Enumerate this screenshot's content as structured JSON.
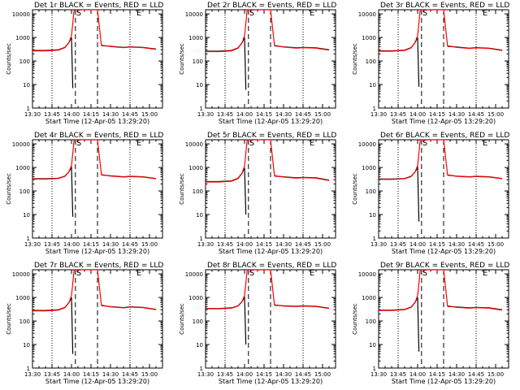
{
  "x_tick_labels": [
    "13:30",
    "13:45",
    "14:00",
    "14:15",
    "14:30",
    "14:45",
    "15:00"
  ],
  "y_tick_labels": [
    "1",
    "10",
    "100",
    "1000",
    "10000"
  ],
  "ylabel": "Counts/sec",
  "xlabel": "Start Time (12-Apr-05 13:29:20)",
  "marker_s": "S",
  "marker_e": "E",
  "colors": {
    "events": "#000000",
    "lld": "#ff0000"
  },
  "chart_data": [
    {
      "type": "line",
      "title": "Det 1r BLACK = Events, RED = LLD",
      "xlabel": "Start Time (12-Apr-05 13:29:20)",
      "ylabel": "Counts/sec",
      "y_scale": "log",
      "ylim": [
        1,
        15000
      ],
      "xlim": [
        "13:30",
        "15:10"
      ],
      "dotted_lines": [
        "13:45",
        "14:45"
      ],
      "dashed_lines": [
        "14:03",
        "14:20"
      ],
      "series": [
        {
          "name": "Events",
          "color": "#000000",
          "x": [
            "13:30",
            "13:40",
            "13:50",
            "13:55",
            "13:58",
            "14:00",
            "14:01",
            "14:02",
            "14:20",
            "14:23",
            "14:30",
            "14:40",
            "14:45",
            "14:55",
            "15:05"
          ],
          "y": [
            280,
            280,
            300,
            380,
            600,
            1000,
            7,
            null,
            null,
            450,
            420,
            380,
            400,
            380,
            320
          ]
        },
        {
          "name": "LLD",
          "color": "#ff0000",
          "x": [
            "13:30",
            "13:40",
            "13:50",
            "13:55",
            "13:58",
            "14:00",
            "14:01",
            "14:02",
            "14:20",
            "14:23",
            "14:30",
            "14:40",
            "14:45",
            "14:55",
            "15:05"
          ],
          "y": [
            270,
            270,
            290,
            370,
            600,
            1200,
            4000,
            15000,
            15000,
            470,
            410,
            370,
            390,
            370,
            310
          ]
        }
      ]
    },
    {
      "type": "line",
      "title": "Det 2r BLACK = Events, RED = LLD",
      "xlabel": "Start Time (12-Apr-05 13:29:20)",
      "ylabel": "Counts/sec",
      "y_scale": "log",
      "ylim": [
        1,
        15000
      ],
      "xlim": [
        "13:30",
        "15:10"
      ],
      "dotted_lines": [
        "13:45",
        "14:45"
      ],
      "dashed_lines": [
        "14:03",
        "14:20"
      ],
      "series": [
        {
          "name": "Events",
          "color": "#000000",
          "x": [
            "13:30",
            "13:40",
            "13:50",
            "13:55",
            "13:58",
            "14:00",
            "14:01",
            "14:02",
            "14:20",
            "14:23",
            "14:30",
            "14:40",
            "14:45",
            "14:55",
            "15:05"
          ],
          "y": [
            260,
            260,
            280,
            360,
            580,
            1000,
            6,
            null,
            null,
            440,
            400,
            360,
            380,
            360,
            300
          ]
        },
        {
          "name": "LLD",
          "color": "#ff0000",
          "x": [
            "13:30",
            "13:40",
            "13:50",
            "13:55",
            "13:58",
            "14:00",
            "14:01",
            "14:02",
            "14:20",
            "14:23",
            "14:30",
            "14:40",
            "14:45",
            "14:55",
            "15:05"
          ],
          "y": [
            250,
            250,
            270,
            350,
            580,
            1200,
            4000,
            15000,
            15000,
            460,
            390,
            350,
            370,
            350,
            290
          ]
        }
      ]
    },
    {
      "type": "line",
      "title": "Det 3r BLACK = Events, RED = LLD",
      "xlabel": "Start Time (12-Apr-05 13:29:20)",
      "ylabel": "Counts/sec",
      "y_scale": "log",
      "ylim": [
        1,
        15000
      ],
      "xlim": [
        "13:30",
        "15:10"
      ],
      "dotted_lines": [
        "13:45",
        "14:45"
      ],
      "dashed_lines": [
        "14:03",
        "14:20"
      ],
      "series": [
        {
          "name": "Events",
          "color": "#000000",
          "x": [
            "13:30",
            "13:40",
            "13:50",
            "13:55",
            "13:58",
            "14:00",
            "14:01",
            "14:02",
            "14:20",
            "14:23",
            "14:30",
            "14:40",
            "14:45",
            "14:55",
            "15:05"
          ],
          "y": [
            270,
            270,
            290,
            370,
            600,
            1000,
            8,
            null,
            null,
            420,
            390,
            350,
            370,
            350,
            290
          ]
        },
        {
          "name": "LLD",
          "color": "#ff0000",
          "x": [
            "13:30",
            "13:40",
            "13:50",
            "13:55",
            "13:58",
            "14:00",
            "14:01",
            "14:02",
            "14:20",
            "14:23",
            "14:30",
            "14:40",
            "14:45",
            "14:55",
            "15:05"
          ],
          "y": [
            260,
            260,
            280,
            360,
            600,
            1200,
            4000,
            15000,
            15000,
            440,
            380,
            340,
            360,
            340,
            280
          ]
        }
      ]
    },
    {
      "type": "line",
      "title": "Det 4r BLACK = Events, RED = LLD",
      "xlabel": "Start Time (12-Apr-05 13:29:20)",
      "ylabel": "Counts/sec",
      "y_scale": "log",
      "ylim": [
        1,
        15000
      ],
      "xlim": [
        "13:30",
        "15:10"
      ],
      "dotted_lines": [
        "13:45",
        "14:45"
      ],
      "dashed_lines": [
        "14:03",
        "14:20"
      ],
      "series": [
        {
          "name": "Events",
          "color": "#000000",
          "x": [
            "13:30",
            "13:40",
            "13:50",
            "13:55",
            "13:58",
            "14:00",
            "14:01",
            "14:02",
            "14:20",
            "14:23",
            "14:30",
            "14:40",
            "14:45",
            "14:55",
            "15:05"
          ],
          "y": [
            330,
            330,
            350,
            430,
            650,
            1000,
            8,
            null,
            null,
            480,
            440,
            400,
            420,
            400,
            340
          ]
        },
        {
          "name": "LLD",
          "color": "#ff0000",
          "x": [
            "13:30",
            "13:40",
            "13:50",
            "13:55",
            "13:58",
            "14:00",
            "14:01",
            "14:02",
            "14:20",
            "14:23",
            "14:30",
            "14:40",
            "14:45",
            "14:55",
            "15:05"
          ],
          "y": [
            320,
            320,
            340,
            420,
            650,
            1200,
            4000,
            15000,
            15000,
            500,
            430,
            390,
            410,
            390,
            330
          ]
        }
      ]
    },
    {
      "type": "line",
      "title": "Det 5r BLACK = Events, RED = LLD",
      "xlabel": "Start Time (12-Apr-05 13:29:20)",
      "ylabel": "Counts/sec",
      "y_scale": "log",
      "ylim": [
        1,
        15000
      ],
      "xlim": [
        "13:30",
        "15:10"
      ],
      "dotted_lines": [
        "13:45",
        "14:45"
      ],
      "dashed_lines": [
        "14:03",
        "14:20"
      ],
      "series": [
        {
          "name": "Events",
          "color": "#000000",
          "x": [
            "13:30",
            "13:40",
            "13:50",
            "13:55",
            "13:58",
            "14:00",
            "14:01",
            "14:02",
            "14:20",
            "14:23",
            "14:30",
            "14:40",
            "14:45",
            "14:55",
            "15:05"
          ],
          "y": [
            250,
            250,
            270,
            350,
            560,
            950,
            10,
            null,
            null,
            430,
            400,
            360,
            380,
            360,
            290
          ]
        },
        {
          "name": "LLD",
          "color": "#ff0000",
          "x": [
            "13:30",
            "13:40",
            "13:50",
            "13:55",
            "13:58",
            "14:00",
            "14:01",
            "14:02",
            "14:20",
            "14:23",
            "14:30",
            "14:40",
            "14:45",
            "14:55",
            "15:05"
          ],
          "y": [
            240,
            240,
            260,
            340,
            560,
            1150,
            4000,
            15000,
            15000,
            450,
            390,
            350,
            370,
            350,
            280
          ]
        }
      ]
    },
    {
      "type": "line",
      "title": "Det 6r BLACK = Events, RED = LLD",
      "xlabel": "Start Time (12-Apr-05 13:29:20)",
      "ylabel": "Counts/sec",
      "y_scale": "log",
      "ylim": [
        1,
        15000
      ],
      "xlim": [
        "13:30",
        "15:10"
      ],
      "dotted_lines": [
        "13:45",
        "14:45"
      ],
      "dashed_lines": [
        "14:03",
        "14:20"
      ],
      "series": [
        {
          "name": "Events",
          "color": "#000000",
          "x": [
            "13:30",
            "13:40",
            "13:50",
            "13:55",
            "13:58",
            "14:00",
            "14:01",
            "14:02",
            "14:20",
            "14:23",
            "14:30",
            "14:40",
            "14:45",
            "14:55",
            "15:05"
          ],
          "y": [
            320,
            320,
            340,
            420,
            640,
            1000,
            5,
            null,
            null,
            470,
            430,
            400,
            420,
            400,
            340
          ]
        },
        {
          "name": "LLD",
          "color": "#ff0000",
          "x": [
            "13:30",
            "13:40",
            "13:50",
            "13:55",
            "13:58",
            "14:00",
            "14:01",
            "14:02",
            "14:20",
            "14:23",
            "14:30",
            "14:40",
            "14:45",
            "14:55",
            "15:05"
          ],
          "y": [
            310,
            310,
            330,
            410,
            640,
            1200,
            4000,
            15000,
            15000,
            490,
            420,
            390,
            410,
            390,
            330
          ]
        }
      ]
    },
    {
      "type": "line",
      "title": "Det 7r BLACK = Events, RED = LLD",
      "xlabel": "Start Time (12-Apr-05 13:29:20)",
      "ylabel": "Counts/sec",
      "y_scale": "log",
      "ylim": [
        1,
        15000
      ],
      "xlim": [
        "13:30",
        "15:10"
      ],
      "dotted_lines": [
        "13:45",
        "14:45"
      ],
      "dashed_lines": [
        "14:03",
        "14:20"
      ],
      "series": [
        {
          "name": "Events",
          "color": "#000000",
          "x": [
            "13:30",
            "13:40",
            "13:50",
            "13:55",
            "13:58",
            "14:00",
            "14:01",
            "14:02",
            "14:20",
            "14:23",
            "14:30",
            "14:40",
            "14:45",
            "14:55",
            "15:05"
          ],
          "y": [
            280,
            280,
            300,
            380,
            600,
            1000,
            4,
            null,
            null,
            450,
            410,
            370,
            400,
            380,
            310
          ]
        },
        {
          "name": "LLD",
          "color": "#ff0000",
          "x": [
            "13:30",
            "13:40",
            "13:50",
            "13:55",
            "13:58",
            "14:00",
            "14:01",
            "14:02",
            "14:20",
            "14:23",
            "14:30",
            "14:40",
            "14:45",
            "14:55",
            "15:05"
          ],
          "y": [
            270,
            270,
            290,
            370,
            600,
            1200,
            4000,
            15000,
            15000,
            470,
            400,
            360,
            390,
            370,
            300
          ]
        }
      ]
    },
    {
      "type": "line",
      "title": "Det 8r BLACK = Events, RED = LLD",
      "xlabel": "Start Time (12-Apr-05 13:29:20)",
      "ylabel": "Counts/sec",
      "y_scale": "log",
      "ylim": [
        1,
        15000
      ],
      "xlim": [
        "13:30",
        "15:10"
      ],
      "dotted_lines": [
        "13:45",
        "14:45"
      ],
      "dashed_lines": [
        "14:03",
        "14:20"
      ],
      "series": [
        {
          "name": "Events",
          "color": "#000000",
          "x": [
            "13:30",
            "13:40",
            "13:50",
            "13:55",
            "13:58",
            "14:00",
            "14:01",
            "14:02",
            "14:20",
            "14:23",
            "14:30",
            "14:40",
            "14:45",
            "14:55",
            "15:05"
          ],
          "y": [
            340,
            340,
            360,
            440,
            660,
            1000,
            10,
            null,
            null,
            470,
            440,
            420,
            440,
            420,
            350
          ]
        },
        {
          "name": "LLD",
          "color": "#ff0000",
          "x": [
            "13:30",
            "13:40",
            "13:50",
            "13:55",
            "13:58",
            "14:00",
            "14:01",
            "14:02",
            "14:20",
            "14:23",
            "14:30",
            "14:40",
            "14:45",
            "14:55",
            "15:05"
          ],
          "y": [
            330,
            330,
            350,
            430,
            660,
            1200,
            4000,
            15000,
            15000,
            490,
            430,
            410,
            430,
            410,
            340
          ]
        }
      ]
    },
    {
      "type": "line",
      "title": "Det 9r BLACK = Events, RED = LLD",
      "xlabel": "Start Time (12-Apr-05 13:29:20)",
      "ylabel": "Counts/sec",
      "y_scale": "log",
      "ylim": [
        1,
        15000
      ],
      "xlim": [
        "13:30",
        "15:10"
      ],
      "dotted_lines": [
        "13:45",
        "14:45"
      ],
      "dashed_lines": [
        "14:03",
        "14:20"
      ],
      "series": [
        {
          "name": "Events",
          "color": "#000000",
          "x": [
            "13:30",
            "13:40",
            "13:50",
            "13:55",
            "13:58",
            "14:00",
            "14:01",
            "14:02",
            "14:20",
            "14:23",
            "14:30",
            "14:40",
            "14:45",
            "14:55",
            "15:05"
          ],
          "y": [
            290,
            290,
            310,
            390,
            610,
            1000,
            5,
            null,
            null,
            420,
            390,
            360,
            380,
            360,
            300
          ]
        },
        {
          "name": "LLD",
          "color": "#ff0000",
          "x": [
            "13:30",
            "13:40",
            "13:50",
            "13:55",
            "13:58",
            "14:00",
            "14:01",
            "14:02",
            "14:20",
            "14:23",
            "14:30",
            "14:40",
            "14:45",
            "14:55",
            "15:05"
          ],
          "y": [
            280,
            280,
            300,
            380,
            610,
            1200,
            4000,
            15000,
            15000,
            440,
            380,
            350,
            370,
            350,
            290
          ]
        }
      ]
    }
  ]
}
